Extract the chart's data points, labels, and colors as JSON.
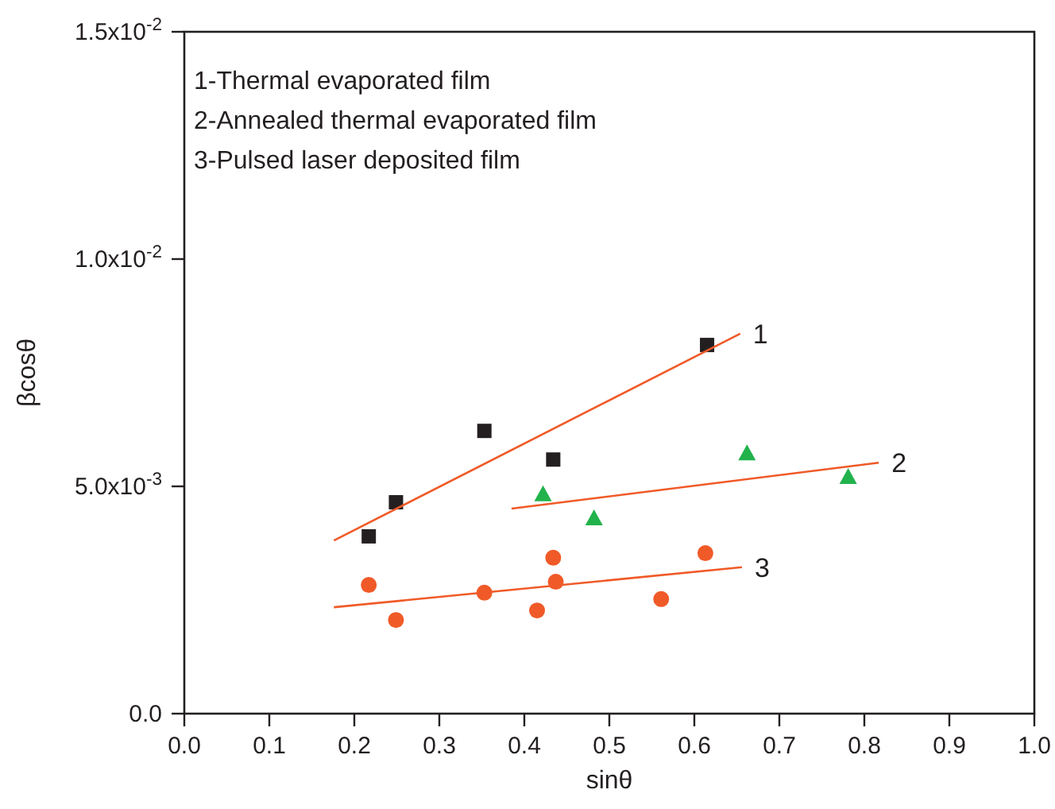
{
  "chart_data": {
    "type": "scatter",
    "xlabel": "sinθ",
    "ylabel": "βcosθ",
    "xlim": [
      0,
      1
    ],
    "xticks": [
      "0.0",
      0.1,
      0.2,
      0.3,
      0.4,
      0.5,
      0.6,
      0.7,
      0.8,
      0.9,
      "1.0"
    ],
    "ylim": [
      0,
      0.015
    ],
    "yticks": [
      {
        "value": 0,
        "label": "0.0"
      },
      {
        "value": 0.005,
        "label": "5.0x10$^{-3}$"
      },
      {
        "value": 0.01,
        "label": "1.0x10$^{-2}$"
      },
      {
        "value": 0.015,
        "label": "1.5x10$^{-2}$"
      }
    ],
    "grid": false,
    "series": [
      {
        "marker": "square",
        "color": "#231f20",
        "x": [
          0.217,
          0.249,
          0.353,
          0.434,
          0.615
        ],
        "values": [
          0.0039,
          0.00465,
          0.00622,
          0.00559,
          0.00811
        ]
      },
      {
        "marker": "triangle",
        "color": "#22b24c",
        "x": [
          0.422,
          0.482,
          0.662,
          0.781
        ],
        "values": [
          0.00483,
          0.0043,
          0.00573,
          0.00521
        ]
      },
      {
        "marker": "circle",
        "color": "#f05a28",
        "x": [
          0.217,
          0.249,
          0.353,
          0.434,
          0.437,
          0.415,
          0.561,
          0.613
        ],
        "values": [
          0.00283,
          0.00206,
          0.00266,
          0.00343,
          0.0029,
          0.00227,
          0.00252,
          0.00353
        ]
      },
      {
        "type": "line",
        "name": "1",
        "color": "#f05a28",
        "marker": "none",
        "line_style": "solid",
        "x": [
          0.176,
          0.654
        ],
        "values": [
          0.00381,
          0.00836
        ]
      },
      {
        "type": "line",
        "name": "2",
        "color": "#f05a28",
        "marker": "none",
        "line_style": "solid",
        "x": [
          0.385,
          0.817
        ],
        "values": [
          0.00451,
          0.00552
        ]
      },
      {
        "type": "line",
        "name": "3",
        "color": "#f05a28",
        "marker": "none",
        "line_style": "solid",
        "x": [
          0.176,
          0.656
        ],
        "values": [
          0.00234,
          0.00322
        ]
      }
    ],
    "annotations": [
      "1-Thermal evaporated film",
      "2-Annealed thermal evaporated film",
      "3-Pulsed laser deposited film"
    ]
  }
}
